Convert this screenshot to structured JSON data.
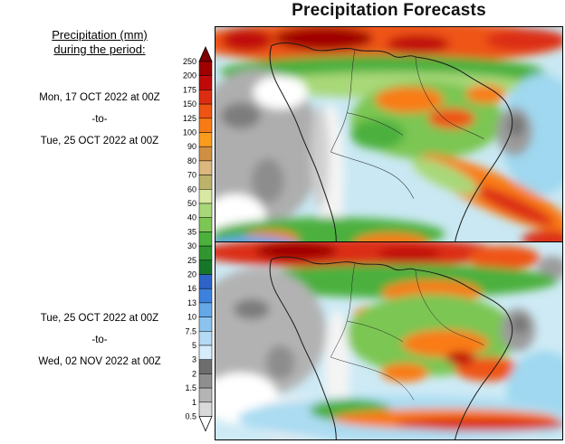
{
  "title": "Precipitation Forecasts",
  "legend": {
    "heading_line1": "Precipitation (mm)",
    "heading_line2": "during the period:",
    "period1": {
      "start": "Mon, 17 OCT 2022 at 00Z",
      "separator": "-to-",
      "end": "Tue, 25 OCT 2022 at 00Z"
    },
    "period2": {
      "start": "Tue, 25 OCT 2022 at 00Z",
      "separator": "-to-",
      "end": "Wed, 02 NOV 2022 at 00Z"
    }
  },
  "colorbar": {
    "units": "mm",
    "ticks": [
      "250",
      "200",
      "175",
      "150",
      "125",
      "100",
      "90",
      "80",
      "70",
      "60",
      "50",
      "40",
      "35",
      "30",
      "25",
      "20",
      "16",
      "13",
      "10",
      "7.5",
      "5",
      "3",
      "2",
      "1.5",
      "1",
      "0.5"
    ],
    "segment_colors_top_to_bottom": [
      "#a00000",
      "#c00a0a",
      "#dc2d12",
      "#ef5412",
      "#f97b14",
      "#fb9b1c",
      "#cf9044",
      "#dcb87f",
      "#bdb269",
      "#d8e8a0",
      "#a8d878",
      "#7cc653",
      "#4cb03c",
      "#2f9630",
      "#147828",
      "#2f63c8",
      "#3c82dc",
      "#64a8e8",
      "#8cc4ef",
      "#b4daf5",
      "#d6ecfa",
      "#6e6e6e",
      "#8f8f8f",
      "#b5b5b5",
      "#dadada"
    ],
    "arrow_top_color": "#7f0000",
    "arrow_bottom_color": "#ffffff"
  }
}
